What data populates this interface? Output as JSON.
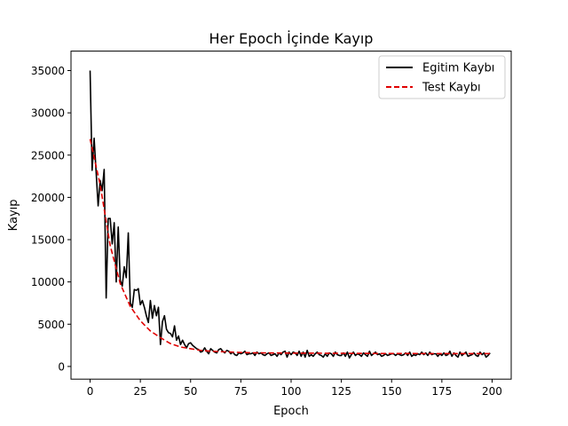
{
  "chart_data": {
    "type": "line",
    "title": "Her Epoch İçinde Kayıp",
    "xlabel": "Epoch",
    "ylabel": "Kayıp",
    "xlim": [
      -9.5,
      209.5
    ],
    "ylim": [
      -1500,
      37300
    ],
    "xticks": [
      0,
      25,
      50,
      75,
      100,
      125,
      150,
      175,
      200
    ],
    "yticks": [
      0,
      5000,
      10000,
      15000,
      20000,
      25000,
      30000,
      35000
    ],
    "legend_position": "upper right",
    "series": [
      {
        "name": "Egitim Kaybı",
        "color": "#000000",
        "style": "solid",
        "x": [
          0,
          1,
          2,
          3,
          4,
          5,
          6,
          7,
          8,
          9,
          10,
          11,
          12,
          13,
          14,
          15,
          16,
          17,
          18,
          19,
          20,
          21,
          22,
          23,
          24,
          25,
          26,
          27,
          28,
          29,
          30,
          31,
          32,
          33,
          34,
          35,
          36,
          37,
          38,
          39,
          40,
          41,
          42,
          43,
          44,
          45,
          46,
          47,
          48,
          49,
          50,
          51,
          52,
          53,
          54,
          55,
          56,
          57,
          58,
          59,
          60,
          61,
          62,
          63,
          64,
          65,
          66,
          67,
          68,
          69,
          70,
          71,
          72,
          73,
          74,
          75,
          76,
          77,
          78,
          79,
          80,
          81,
          82,
          83,
          84,
          85,
          86,
          87,
          88,
          89,
          90,
          91,
          92,
          93,
          94,
          95,
          96,
          97,
          98,
          99,
          100,
          101,
          102,
          103,
          104,
          105,
          106,
          107,
          108,
          109,
          110,
          111,
          112,
          113,
          114,
          115,
          116,
          117,
          118,
          119,
          120,
          121,
          122,
          123,
          124,
          125,
          126,
          127,
          128,
          129,
          130,
          131,
          132,
          133,
          134,
          135,
          136,
          137,
          138,
          139,
          140,
          141,
          142,
          143,
          144,
          145,
          146,
          147,
          148,
          149,
          150,
          151,
          152,
          153,
          154,
          155,
          156,
          157,
          158,
          159,
          160,
          161,
          162,
          163,
          164,
          165,
          166,
          167,
          168,
          169,
          170,
          171,
          172,
          173,
          174,
          175,
          176,
          177,
          178,
          179,
          180,
          181,
          182,
          183,
          184,
          185,
          186,
          187,
          188,
          189,
          190,
          191,
          192,
          193,
          194,
          195,
          196,
          197,
          198,
          199
        ],
        "y": [
          35000,
          23200,
          27000,
          23000,
          19000,
          22000,
          20800,
          23300,
          8100,
          17500,
          17500,
          14500,
          17000,
          10000,
          16500,
          10200,
          9500,
          11800,
          10500,
          15800,
          7500,
          7000,
          9100,
          9000,
          9200,
          7300,
          7800,
          7000,
          6000,
          5200,
          7800,
          5700,
          7200,
          6000,
          7000,
          2600,
          5300,
          6000,
          4400,
          4000,
          3900,
          3500,
          4800,
          3100,
          3600,
          2600,
          3100,
          2600,
          2200,
          2700,
          2800,
          2500,
          2300,
          2100,
          2000,
          1700,
          1800,
          2200,
          1800,
          1500,
          2100,
          1900,
          1700,
          1600,
          2000,
          2100,
          1800,
          1600,
          1900,
          1800,
          1500,
          1700,
          1400,
          1300,
          1600,
          1500,
          1600,
          1800,
          1400,
          1500,
          1500,
          1600,
          1300,
          1700,
          1500,
          1600,
          1400,
          1300,
          1500,
          1600,
          1300,
          1400,
          1500,
          1200,
          1600,
          1400,
          1700,
          1800,
          1100,
          1700,
          1400,
          1700,
          1600,
          1300,
          1800,
          1200,
          1700,
          1100,
          1900,
          1200,
          1400,
          1200,
          1500,
          1700,
          1400,
          1300,
          1100,
          1500,
          1200,
          1600,
          1500,
          1200,
          1700,
          1400,
          1300,
          1300,
          1600,
          1200,
          1700,
          1000,
          1400,
          1700,
          1300,
          1500,
          1400,
          1200,
          1600,
          1400,
          1200,
          1800,
          1300,
          1500,
          1700,
          1400,
          1500,
          1200,
          1300,
          1500,
          1300,
          1400,
          1500,
          1500,
          1300,
          1500,
          1400,
          1300,
          1400,
          1600,
          1300,
          1700,
          1200,
          1400,
          1300,
          1500,
          1400,
          1700,
          1400,
          1600,
          1300,
          1700,
          1400,
          1500,
          1500,
          1200,
          1500,
          1300,
          1600,
          1300,
          1400,
          1800,
          1200,
          1600,
          1300,
          1100,
          1700,
          1300,
          1500,
          1700,
          1200,
          1300,
          1400,
          1600,
          1300,
          1200,
          1700,
          1400,
          1600,
          1100,
          1300,
          1600
        ]
      },
      {
        "name": "Test Kaybı",
        "color": "#e00000",
        "style": "dashed",
        "x": [
          0,
          5,
          10,
          15,
          20,
          25,
          30,
          35,
          40,
          45,
          50,
          55,
          60,
          65,
          70,
          75,
          80,
          90,
          100,
          110,
          120,
          130,
          140,
          150,
          160,
          170,
          180,
          190,
          200
        ],
        "y": [
          26900,
          21500,
          14300,
          9800,
          7100,
          5400,
          4200,
          3400,
          2700,
          2300,
          2100,
          1900,
          1800,
          1750,
          1700,
          1650,
          1620,
          1600,
          1580,
          1570,
          1560,
          1550,
          1540,
          1530,
          1530,
          1520,
          1520,
          1520,
          1520
        ]
      }
    ]
  }
}
